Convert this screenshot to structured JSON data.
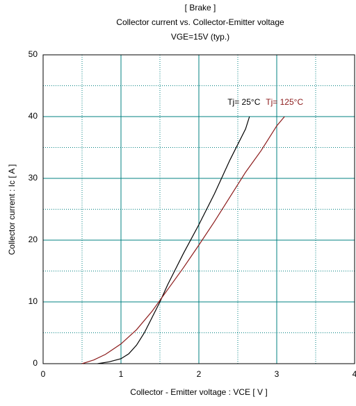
{
  "chart_data": {
    "type": "line",
    "title": "[ Brake ]",
    "subtitle": "Collector current  vs.  Collector-Emitter voltage",
    "condition": "VGE=15V  (typ.)",
    "x_label": "Collector - Emitter voltage  :  VCE  [ V ]",
    "y_label": "Collector current  :  Ic  [ A ]",
    "xlim": [
      0,
      4
    ],
    "xticks": [
      0,
      1,
      2,
      3,
      4
    ],
    "ylim": [
      0,
      50
    ],
    "yticks": [
      0,
      10,
      20,
      30,
      40,
      50
    ],
    "x_minor_grid": [
      0.5,
      1.5,
      2.5,
      3.5
    ],
    "y_minor_grid": [
      5,
      15,
      25,
      35,
      45
    ],
    "grid": true,
    "grid_color": "#008080",
    "series": [
      {
        "name": "Tj= 25°C",
        "color": "#000000",
        "x": [
          0.7,
          0.85,
          1.0,
          1.1,
          1.2,
          1.3,
          1.4,
          1.5,
          1.6,
          1.8,
          2.0,
          2.2,
          2.4,
          2.6,
          2.65
        ],
        "values": [
          0,
          0.3,
          0.8,
          1.6,
          3,
          5,
          7.5,
          10,
          12.8,
          17.8,
          22.5,
          27.5,
          33,
          38,
          40
        ]
      },
      {
        "name": "Tj= 125°C",
        "color": "#8b1a1a",
        "x": [
          0.5,
          0.65,
          0.8,
          1.0,
          1.2,
          1.4,
          1.6,
          1.8,
          2.0,
          2.2,
          2.4,
          2.6,
          2.8,
          3.0,
          3.1
        ],
        "values": [
          0,
          0.6,
          1.5,
          3.2,
          5.5,
          8.5,
          12,
          15.5,
          19.2,
          23,
          27,
          31,
          34.5,
          38.5,
          40
        ]
      }
    ]
  }
}
